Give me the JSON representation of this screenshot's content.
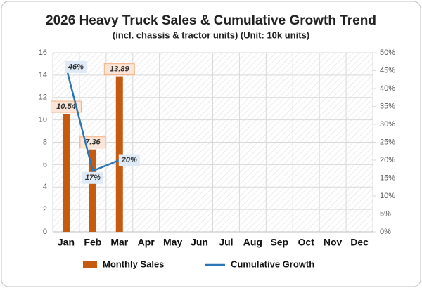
{
  "chart_data": {
    "type": "bar",
    "title": "2026 Heavy Truck Sales & Cumulative Growth Trend",
    "subtitle": "(incl. chassis & tractor units) (Unit: 10k units)",
    "categories": [
      "Jan",
      "Feb",
      "Mar",
      "Apr",
      "May",
      "Jun",
      "Jul",
      "Aug",
      "Sep",
      "Oct",
      "Nov",
      "Dec"
    ],
    "series": [
      {
        "name": "Monthly Sales",
        "type": "bar",
        "color": "#c55a11",
        "values": [
          10.54,
          7.36,
          13.89,
          null,
          null,
          null,
          null,
          null,
          null,
          null,
          null,
          null
        ]
      },
      {
        "name": "Cumulative Growth",
        "type": "line",
        "axis": "y2",
        "color": "#2e75b6",
        "values": [
          46,
          17,
          20,
          null,
          null,
          null,
          null,
          null,
          null,
          null,
          null,
          null
        ],
        "value_labels": [
          "46%",
          "17%",
          "20%",
          null,
          null,
          null,
          null,
          null,
          null,
          null,
          null,
          null
        ]
      }
    ],
    "ylim": [
      0,
      16
    ],
    "yticks": [
      0,
      2,
      4,
      6,
      8,
      10,
      12,
      14,
      16
    ],
    "y2lim": [
      0,
      50
    ],
    "y2ticks": [
      {
        "value": 0,
        "label": "0%"
      },
      {
        "value": 5,
        "label": "5%"
      },
      {
        "value": 10,
        "label": "10%"
      },
      {
        "value": 15,
        "label": "15%"
      },
      {
        "value": 20,
        "label": "20%"
      },
      {
        "value": 25,
        "label": "25%"
      },
      {
        "value": 30,
        "label": "30%"
      },
      {
        "value": 35,
        "label": "35%"
      },
      {
        "value": 40,
        "label": "40%"
      },
      {
        "value": 45,
        "label": "45%"
      },
      {
        "value": 50,
        "label": "50%"
      }
    ],
    "grid": true,
    "legend": "bottom"
  }
}
